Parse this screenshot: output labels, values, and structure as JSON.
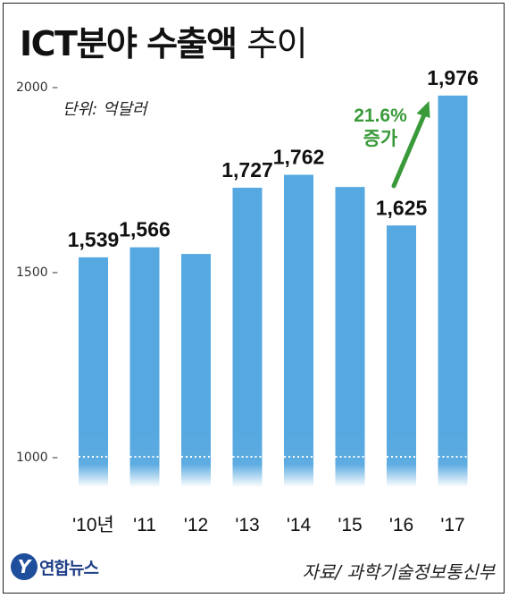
{
  "title_bold": "ICT분야 수출액",
  "title_light": "추이",
  "unit_label": "단위: 억달러",
  "source": "자료/ 과학기술정보통신부",
  "logo_symbol": "Y",
  "logo_text": "연합뉴스",
  "colors": {
    "bar": "#55a8e0",
    "growth_arrow": "#3a9a3a",
    "text": "#111111",
    "axis": "#333333"
  },
  "chart_data": {
    "type": "bar",
    "categories": [
      "'10년",
      "'11",
      "'12",
      "'13",
      "'14",
      "'15",
      "'16",
      "'17"
    ],
    "values": [
      1539,
      1566,
      1548,
      1727,
      1762,
      1729,
      1625,
      1976
    ],
    "data_labels": [
      "1,539",
      "1,566",
      "",
      "1,727",
      "1,762",
      "",
      "1,625",
      "1,976"
    ],
    "ytick_values": [
      1000,
      1500,
      2000
    ],
    "ytick_labels": [
      "1000 –",
      "1500 –",
      "2000 –"
    ],
    "ylim": [
      1000,
      2000
    ],
    "annotation": {
      "lines": [
        "21.6%",
        "증가"
      ],
      "from_index": 6,
      "to_index": 7
    }
  }
}
